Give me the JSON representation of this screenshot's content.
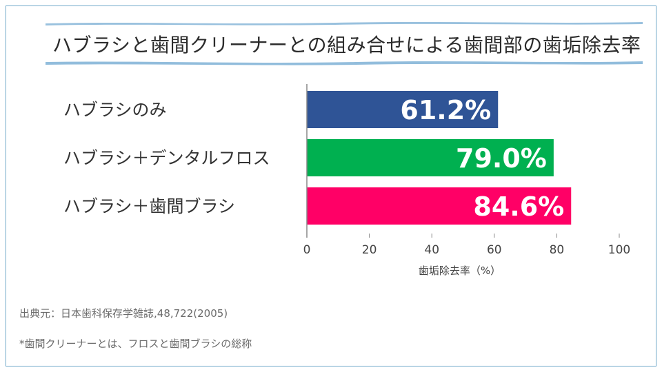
{
  "chart_data": {
    "type": "bar",
    "orientation": "horizontal",
    "title": "ハブラシと歯間クリーナーとの組み合せによる歯間部の歯垢除去率",
    "categories": [
      "ハブラシのみ",
      "ハブラシ＋デンタルフロス",
      "ハブラシ＋歯間ブラシ"
    ],
    "values": [
      61.2,
      79.0,
      84.6
    ],
    "value_labels": [
      "61.2%",
      "79.0%",
      "84.6%"
    ],
    "colors": [
      "#2f5496",
      "#00b050",
      "#ff0066"
    ],
    "xlabel": "歯垢除去率（%）",
    "ylabel": "",
    "xlim": [
      0,
      100
    ],
    "xticks": [
      0,
      20,
      40,
      60,
      80,
      100
    ],
    "xtick_labels": [
      "0",
      "20",
      "40",
      "60",
      "80",
      "100"
    ],
    "grid": false,
    "legend": "none"
  },
  "footnotes": {
    "source": "出典元：日本歯科保存学雑誌,48,722(2005)",
    "note": "*歯間クリーナーとは、フロスと歯間ブラシの総称"
  },
  "colors": {
    "frame": "#6fa8c9",
    "brush": "#7fb2d6"
  }
}
